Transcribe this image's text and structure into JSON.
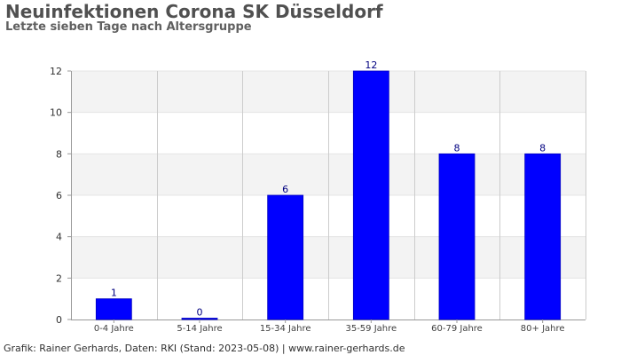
{
  "chart_data": {
    "type": "bar",
    "title": "Neuinfektionen Corona SK Düsseldorf",
    "subtitle": "Letzte sieben Tage nach Altersgruppe",
    "categories": [
      "0-4 Jahre",
      "5-14 Jahre",
      "15-34 Jahre",
      "35-59 Jahre",
      "60-79 Jahre",
      "80+ Jahre"
    ],
    "values": [
      1,
      0,
      6,
      12,
      8,
      8
    ],
    "data_labels": [
      "1",
      "0",
      "6",
      "12",
      "8",
      "8"
    ],
    "xlabel": "",
    "ylabel": "",
    "ylim": [
      0,
      12
    ],
    "yticks": [
      0,
      2,
      4,
      6,
      8,
      10,
      12
    ],
    "grid": true,
    "legend": "none",
    "colors": {
      "bar": "#0000ff",
      "data_label": "#000080",
      "band_light": "#f3f3f3",
      "band_white": "#ffffff",
      "grid": "#cccccc",
      "axis": "#999999",
      "text": "#505050"
    },
    "footer": "Grafik: Rainer Gerhards, Daten: RKI (Stand: 2023-05-08) | www.rainer-gerhards.de"
  }
}
